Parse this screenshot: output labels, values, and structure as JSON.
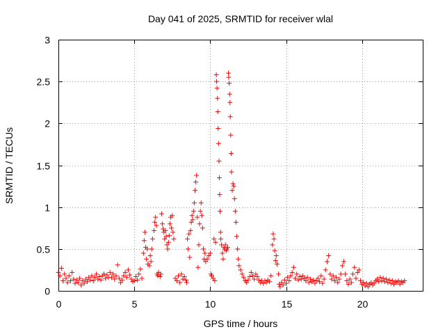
{
  "chart_data": {
    "type": "scatter",
    "title": "Day 041 of 2025, SRMTID for receiver wlal",
    "xlabel": "GPS time / hours",
    "ylabel": "SRMTID / TECUs",
    "xlim": [
      0,
      24
    ],
    "ylim": [
      0,
      3
    ],
    "xticks": [
      0,
      5,
      10,
      15,
      20
    ],
    "yticks": [
      0,
      0.5,
      1,
      1.5,
      2,
      2.5,
      3
    ],
    "xtick_labels": [
      "0",
      "5",
      "10",
      "15",
      "20"
    ],
    "ytick_labels": [
      "0",
      "0.5",
      "1",
      "1.5",
      "2",
      "2.5",
      "3"
    ],
    "grid": true,
    "marker": "+",
    "series": [
      {
        "name": "SRMTID",
        "color": "#ff0000",
        "points": [
          [
            0.0,
            0.22
          ],
          [
            0.1,
            0.18
          ],
          [
            0.2,
            0.27
          ],
          [
            0.3,
            0.12
          ],
          [
            0.4,
            0.2
          ],
          [
            0.5,
            0.15
          ],
          [
            0.6,
            0.1
          ],
          [
            0.7,
            0.18
          ],
          [
            0.8,
            0.12
          ],
          [
            0.9,
            0.22
          ],
          [
            1.0,
            0.14
          ],
          [
            1.1,
            0.09
          ],
          [
            1.2,
            0.13
          ],
          [
            1.3,
            0.1
          ],
          [
            1.4,
            0.15
          ],
          [
            1.5,
            0.07
          ],
          [
            1.6,
            0.12
          ],
          [
            1.7,
            0.09
          ],
          [
            1.8,
            0.14
          ],
          [
            1.9,
            0.11
          ],
          [
            2.0,
            0.16
          ],
          [
            2.1,
            0.13
          ],
          [
            2.2,
            0.18
          ],
          [
            2.3,
            0.12
          ],
          [
            2.4,
            0.16
          ],
          [
            2.5,
            0.2
          ],
          [
            2.6,
            0.14
          ],
          [
            2.7,
            0.17
          ],
          [
            2.8,
            0.13
          ],
          [
            2.9,
            0.18
          ],
          [
            3.0,
            0.2
          ],
          [
            3.1,
            0.15
          ],
          [
            3.2,
            0.19
          ],
          [
            3.3,
            0.16
          ],
          [
            3.4,
            0.22
          ],
          [
            3.5,
            0.16
          ],
          [
            3.6,
            0.2
          ],
          [
            3.7,
            0.14
          ],
          [
            3.8,
            0.18
          ],
          [
            3.9,
            0.31
          ],
          [
            4.0,
            0.15
          ],
          [
            4.1,
            0.1
          ],
          [
            4.2,
            0.13
          ],
          [
            4.3,
            0.18
          ],
          [
            4.4,
            0.22
          ],
          [
            4.5,
            0.16
          ],
          [
            4.6,
            0.25
          ],
          [
            4.7,
            0.19
          ],
          [
            4.8,
            0.14
          ],
          [
            4.9,
            0.11
          ],
          [
            5.0,
            0.12
          ],
          [
            5.1,
            0.17
          ],
          [
            5.2,
            0.13
          ],
          [
            5.3,
            0.2
          ],
          [
            5.4,
            0.26
          ],
          [
            5.5,
            0.15
          ],
          [
            5.6,
            0.45
          ],
          [
            5.65,
            0.6
          ],
          [
            5.7,
            0.7
          ],
          [
            5.75,
            0.52
          ],
          [
            5.8,
            0.38
          ],
          [
            5.85,
            0.5
          ],
          [
            5.9,
            0.32
          ],
          [
            6.0,
            0.3
          ],
          [
            6.05,
            0.42
          ],
          [
            6.1,
            0.35
          ],
          [
            6.15,
            0.5
          ],
          [
            6.2,
            0.62
          ],
          [
            6.3,
            0.72
          ],
          [
            6.35,
            0.82
          ],
          [
            6.4,
            0.88
          ],
          [
            6.45,
            0.78
          ],
          [
            6.5,
            0.2
          ],
          [
            6.55,
            0.18
          ],
          [
            6.6,
            0.22
          ],
          [
            6.7,
            0.17
          ],
          [
            6.75,
            0.2
          ],
          [
            6.8,
            0.92
          ],
          [
            6.85,
            0.8
          ],
          [
            6.9,
            0.74
          ],
          [
            6.95,
            0.7
          ],
          [
            7.0,
            0.62
          ],
          [
            7.05,
            0.72
          ],
          [
            7.1,
            0.65
          ],
          [
            7.15,
            0.55
          ],
          [
            7.2,
            0.5
          ],
          [
            7.25,
            0.58
          ],
          [
            7.3,
            0.66
          ],
          [
            7.35,
            0.8
          ],
          [
            7.4,
            0.88
          ],
          [
            7.45,
            0.75
          ],
          [
            7.5,
            0.9
          ],
          [
            7.55,
            0.7
          ],
          [
            7.6,
            0.62
          ],
          [
            7.7,
            0.15
          ],
          [
            7.8,
            0.12
          ],
          [
            7.9,
            0.18
          ],
          [
            8.0,
            0.1
          ],
          [
            8.1,
            0.2
          ],
          [
            8.2,
            0.14
          ],
          [
            8.3,
            0.17
          ],
          [
            8.4,
            0.13
          ],
          [
            8.45,
            0.1
          ],
          [
            8.5,
            0.62
          ],
          [
            8.55,
            0.5
          ],
          [
            8.6,
            0.68
          ],
          [
            8.65,
            0.4
          ],
          [
            8.7,
            0.72
          ],
          [
            8.75,
            0.82
          ],
          [
            8.8,
            0.9
          ],
          [
            8.85,
            0.85
          ],
          [
            8.9,
            0.95
          ],
          [
            8.95,
            1.05
          ],
          [
            9.0,
            1.2
          ],
          [
            9.05,
            1.3
          ],
          [
            9.1,
            1.38
          ],
          [
            9.15,
            0.88
          ],
          [
            9.2,
            0.28
          ],
          [
            9.25,
            0.55
          ],
          [
            9.3,
            0.8
          ],
          [
            9.35,
            0.95
          ],
          [
            9.4,
            1.05
          ],
          [
            9.45,
            0.9
          ],
          [
            9.5,
            0.75
          ],
          [
            9.55,
            0.5
          ],
          [
            9.6,
            0.38
          ],
          [
            9.65,
            0.45
          ],
          [
            9.7,
            0.35
          ],
          [
            9.8,
            0.38
          ],
          [
            9.9,
            0.42
          ],
          [
            10.0,
            0.45
          ],
          [
            10.05,
            0.2
          ],
          [
            10.1,
            0.18
          ],
          [
            10.2,
            0.15
          ],
          [
            10.25,
            0.62
          ],
          [
            10.3,
            0.12
          ],
          [
            10.35,
            0.58
          ],
          [
            10.4,
            2.58
          ],
          [
            10.42,
            2.5
          ],
          [
            10.45,
            2.42
          ],
          [
            10.48,
            2.3
          ],
          [
            10.5,
            2.14
          ],
          [
            10.52,
            1.94
          ],
          [
            10.55,
            1.76
          ],
          [
            10.58,
            1.55
          ],
          [
            10.6,
            1.35
          ],
          [
            10.62,
            1.15
          ],
          [
            10.65,
            0.95
          ],
          [
            10.68,
            0.7
          ],
          [
            10.7,
            0.62
          ],
          [
            10.75,
            0.55
          ],
          [
            10.8,
            0.45
          ],
          [
            10.85,
            0.38
          ],
          [
            10.9,
            0.52
          ],
          [
            10.95,
            0.5
          ],
          [
            11.0,
            0.55
          ],
          [
            11.05,
            0.48
          ],
          [
            11.1,
            0.5
          ],
          [
            11.15,
            0.52
          ],
          [
            11.2,
            2.6
          ],
          [
            11.22,
            2.55
          ],
          [
            11.25,
            2.48
          ],
          [
            11.28,
            2.35
          ],
          [
            11.3,
            2.25
          ],
          [
            11.32,
            2.08
          ],
          [
            11.35,
            1.86
          ],
          [
            11.38,
            1.64
          ],
          [
            11.4,
            1.42
          ],
          [
            11.45,
            1.2
          ],
          [
            11.5,
            1.28
          ],
          [
            11.55,
            1.25
          ],
          [
            11.6,
            1.1
          ],
          [
            11.65,
            0.95
          ],
          [
            11.7,
            0.82
          ],
          [
            11.75,
            0.65
          ],
          [
            11.8,
            0.5
          ],
          [
            11.85,
            0.38
          ],
          [
            11.9,
            0.3
          ],
          [
            12.0,
            0.25
          ],
          [
            12.1,
            0.2
          ],
          [
            12.2,
            0.16
          ],
          [
            12.3,
            0.12
          ],
          [
            12.4,
            0.1
          ],
          [
            12.5,
            0.13
          ],
          [
            12.6,
            0.17
          ],
          [
            12.7,
            0.22
          ],
          [
            12.8,
            0.18
          ],
          [
            12.9,
            0.14
          ],
          [
            13.0,
            0.2
          ],
          [
            13.1,
            0.17
          ],
          [
            13.2,
            0.13
          ],
          [
            13.3,
            0.1
          ],
          [
            13.4,
            0.12
          ],
          [
            13.5,
            0.09
          ],
          [
            13.6,
            0.12
          ],
          [
            13.7,
            0.1
          ],
          [
            13.8,
            0.13
          ],
          [
            13.9,
            0.11
          ],
          [
            14.0,
            0.18
          ],
          [
            14.1,
            0.55
          ],
          [
            14.15,
            0.68
          ],
          [
            14.2,
            0.62
          ],
          [
            14.25,
            0.48
          ],
          [
            14.3,
            0.36
          ],
          [
            14.35,
            0.42
          ],
          [
            14.4,
            0.32
          ],
          [
            14.5,
            0.2
          ],
          [
            14.55,
            0.08
          ],
          [
            14.6,
            0.05
          ],
          [
            14.7,
            0.1
          ],
          [
            14.8,
            0.07
          ],
          [
            14.9,
            0.13
          ],
          [
            15.0,
            0.09
          ],
          [
            15.1,
            0.16
          ],
          [
            15.2,
            0.12
          ],
          [
            15.3,
            0.18
          ],
          [
            15.4,
            0.22
          ],
          [
            15.5,
            0.28
          ],
          [
            15.6,
            0.15
          ],
          [
            15.7,
            0.2
          ],
          [
            15.8,
            0.13
          ],
          [
            15.9,
            0.17
          ],
          [
            16.0,
            0.14
          ],
          [
            16.1,
            0.18
          ],
          [
            16.2,
            0.15
          ],
          [
            16.3,
            0.12
          ],
          [
            16.4,
            0.16
          ],
          [
            16.5,
            0.1
          ],
          [
            16.6,
            0.14
          ],
          [
            16.7,
            0.11
          ],
          [
            16.8,
            0.13
          ],
          [
            16.9,
            0.09
          ],
          [
            17.0,
            0.12
          ],
          [
            17.1,
            0.15
          ],
          [
            17.2,
            0.11
          ],
          [
            17.3,
            0.18
          ],
          [
            17.4,
            0.09
          ],
          [
            17.5,
            0.14
          ],
          [
            17.6,
            0.25
          ],
          [
            17.7,
            0.35
          ],
          [
            17.8,
            0.42
          ],
          [
            17.9,
            0.2
          ],
          [
            18.0,
            0.14
          ],
          [
            18.1,
            0.18
          ],
          [
            18.2,
            0.12
          ],
          [
            18.3,
            0.16
          ],
          [
            18.4,
            0.1
          ],
          [
            18.5,
            0.14
          ],
          [
            18.6,
            0.2
          ],
          [
            18.7,
            0.3
          ],
          [
            18.8,
            0.35
          ],
          [
            18.9,
            0.2
          ],
          [
            19.0,
            0.12
          ],
          [
            19.1,
            0.08
          ],
          [
            19.2,
            0.14
          ],
          [
            19.3,
            0.1
          ],
          [
            19.4,
            0.2
          ],
          [
            19.5,
            0.28
          ],
          [
            19.6,
            0.15
          ],
          [
            19.7,
            0.22
          ],
          [
            19.8,
            0.25
          ],
          [
            19.9,
            0.12
          ],
          [
            20.0,
            0.08
          ],
          [
            20.1,
            0.1
          ],
          [
            20.2,
            0.06
          ],
          [
            20.3,
            0.09
          ],
          [
            20.4,
            0.05
          ],
          [
            20.5,
            0.08
          ],
          [
            20.6,
            0.1
          ],
          [
            20.7,
            0.07
          ],
          [
            20.8,
            0.09
          ],
          [
            20.9,
            0.12
          ],
          [
            21.0,
            0.14
          ],
          [
            21.1,
            0.11
          ],
          [
            21.2,
            0.16
          ],
          [
            21.3,
            0.12
          ],
          [
            21.4,
            0.15
          ],
          [
            21.5,
            0.11
          ],
          [
            21.6,
            0.14
          ],
          [
            21.7,
            0.1
          ],
          [
            21.8,
            0.13
          ],
          [
            21.9,
            0.09
          ],
          [
            22.0,
            0.12
          ],
          [
            22.1,
            0.08
          ],
          [
            22.2,
            0.11
          ],
          [
            22.3,
            0.1
          ],
          [
            22.4,
            0.12
          ],
          [
            22.5,
            0.08
          ],
          [
            22.6,
            0.11
          ],
          [
            22.7,
            0.1
          ],
          [
            22.8,
            0.12
          ]
        ]
      }
    ]
  }
}
